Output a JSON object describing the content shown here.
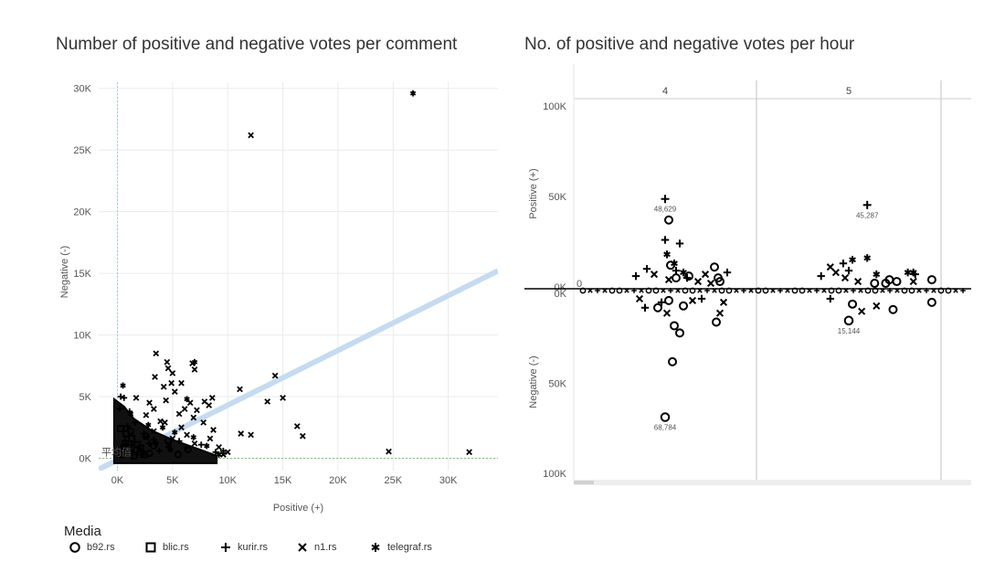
{
  "colors": {
    "grid": "#ebebeb",
    "marker": "#000000",
    "fit_line": "#c6dbef",
    "zero_line_h": "#7bc47b",
    "zero_line_v": "#9ecae1",
    "facet_border": "#cccccc"
  },
  "legend": {
    "title": "Media",
    "items": [
      {
        "label": "b92.rs",
        "shape": "circle"
      },
      {
        "label": "blic.rs",
        "shape": "square"
      },
      {
        "label": "kurir.rs",
        "shape": "plus"
      },
      {
        "label": "n1.rs",
        "shape": "cross"
      },
      {
        "label": "telegraf.rs",
        "shape": "asterisk"
      }
    ]
  },
  "chart_data": [
    {
      "type": "scatter",
      "title": "Number of positive and negative votes per comment",
      "xlabel": "Positive (+)",
      "ylabel": "Negative (-)",
      "xlim": [
        -1700,
        34500
      ],
      "ylim": [
        -1000,
        30500
      ],
      "x_ticks": [
        0,
        5000,
        10000,
        15000,
        20000,
        25000,
        30000
      ],
      "x_tick_labels": [
        "0K",
        "5K",
        "10K",
        "15K",
        "20K",
        "25K",
        "30K"
      ],
      "y_ticks": [
        0,
        5000,
        10000,
        15000,
        20000,
        25000,
        30000
      ],
      "y_tick_labels": [
        "0K",
        "5K",
        "10K",
        "15K",
        "20K",
        "25K",
        "30K"
      ],
      "grid": true,
      "legend_position": "bottom",
      "watermark_text": "平均值",
      "fit_line": {
        "x0": -1700,
        "y0": -900,
        "x1": 34500,
        "y1": 15200
      },
      "series": [
        {
          "name": "n1.rs",
          "marker": "cross",
          "points": [
            [
              12100,
              26200
            ],
            [
              5800,
              6100
            ],
            [
              14300,
              6700
            ],
            [
              15000,
              4900
            ],
            [
              13600,
              4600
            ],
            [
              11100,
              5600
            ],
            [
              11200,
              2000
            ],
            [
              12100,
              1900
            ],
            [
              16300,
              2600
            ],
            [
              16800,
              1800
            ],
            [
              24600,
              550
            ],
            [
              31900,
              500
            ],
            [
              7000,
              7200
            ],
            [
              6800,
              7700
            ],
            [
              4500,
              7800
            ],
            [
              3500,
              8500
            ],
            [
              4600,
              7300
            ],
            [
              5000,
              6900
            ],
            [
              3400,
              6600
            ],
            [
              4200,
              5800
            ],
            [
              5200,
              5400
            ],
            [
              4900,
              6100
            ],
            [
              8600,
              4900
            ],
            [
              7900,
              4600
            ],
            [
              8300,
              4300
            ],
            [
              7200,
              3900
            ],
            [
              6100,
              4000
            ],
            [
              5600,
              3600
            ],
            [
              7800,
              2900
            ],
            [
              8700,
              2300
            ],
            [
              8400,
              1600
            ],
            [
              9200,
              900
            ],
            [
              10000,
              500
            ],
            [
              9600,
              300
            ],
            [
              4400,
              4700
            ],
            [
              6600,
              4500
            ],
            [
              6900,
              3300
            ],
            [
              3900,
              3000
            ],
            [
              1700,
              4900
            ],
            [
              2900,
              4500
            ],
            [
              3300,
              4000
            ],
            [
              2600,
              3500
            ],
            [
              5800,
              2500
            ],
            [
              4300,
              2900
            ],
            [
              6300,
              1900
            ],
            [
              7000,
              1200
            ],
            [
              5000,
              1600
            ],
            [
              3300,
              2200
            ],
            [
              2600,
              1700
            ],
            [
              4700,
              1100
            ]
          ]
        },
        {
          "name": "kurir.rs",
          "marker": "plus",
          "points": [
            [
              300,
              5000
            ],
            [
              600,
              4900
            ],
            [
              200,
              4000
            ],
            [
              1100,
              3800
            ],
            [
              900,
              2600
            ],
            [
              1600,
              2900
            ],
            [
              2400,
              2000
            ],
            [
              3300,
              1500
            ],
            [
              4600,
              900
            ],
            [
              5600,
              1400
            ],
            [
              8900,
              500
            ],
            [
              9600,
              600
            ],
            [
              700,
              1400
            ],
            [
              1300,
              1100
            ],
            [
              2100,
              700
            ],
            [
              2900,
              1200
            ],
            [
              3800,
              600
            ],
            [
              6300,
              900
            ],
            [
              7600,
              1100
            ],
            [
              1800,
              300
            ]
          ]
        },
        {
          "name": "telegraf.rs",
          "marker": "asterisk",
          "points": [
            [
              26800,
              29600
            ],
            [
              7000,
              7800
            ],
            [
              6300,
              4800
            ],
            [
              500,
              5900
            ],
            [
              1200,
              3600
            ],
            [
              2800,
              2700
            ],
            [
              4100,
              2500
            ],
            [
              5200,
              2100
            ],
            [
              6900,
              1700
            ],
            [
              3500,
              1200
            ],
            [
              4800,
              700
            ],
            [
              8100,
              1000
            ],
            [
              9200,
              300
            ],
            [
              2300,
              400
            ]
          ]
        },
        {
          "name": "b92.rs",
          "marker": "circle",
          "points": [
            [
              1200,
              2200
            ],
            [
              2600,
              1800
            ],
            [
              3300,
              1000
            ],
            [
              4600,
              1400
            ],
            [
              6400,
              700
            ],
            [
              1700,
              700
            ],
            [
              2900,
              400
            ],
            [
              5500,
              300
            ]
          ]
        },
        {
          "name": "blic.rs",
          "marker": "square",
          "points": [
            [
              400,
              300
            ],
            [
              900,
              600
            ],
            [
              1500,
              200
            ],
            [
              2100,
              800
            ],
            [
              700,
              1200
            ],
            [
              1300,
              1600
            ],
            [
              300,
              2400
            ],
            [
              800,
              2000
            ],
            [
              1800,
              1100
            ],
            [
              2400,
              300
            ],
            [
              600,
              900
            ],
            [
              1100,
              400
            ]
          ]
        }
      ]
    },
    {
      "type": "scatter",
      "title": "No. of positive and negative votes per hour",
      "xlabel": "",
      "ylabel_top": "Positive (+)",
      "ylabel_bottom": "Negative (-)",
      "y_ticks_top": [
        100000,
        50000,
        0
      ],
      "y_tick_labels_top": [
        "100K",
        "50K",
        "0K"
      ],
      "y_ticks_bottom": [
        0,
        50000,
        100000
      ],
      "y_tick_labels_bottom": [
        "0K",
        "50K",
        "100K"
      ],
      "ylim": [
        -100000,
        100000
      ],
      "x_axis_label": "0",
      "facets": [
        "4",
        "5"
      ],
      "annotations": [
        {
          "facet": "4",
          "x": 0.5,
          "y": 48629,
          "text": "48,629",
          "marker": "plus"
        },
        {
          "facet": "4",
          "x": 0.5,
          "y": -68784,
          "text": "68,784",
          "marker": "circle"
        },
        {
          "facet": "5",
          "x": 0.6,
          "y": 45287,
          "text": "45,287",
          "marker": "plus"
        },
        {
          "facet": "5",
          "x": 0.5,
          "y": -15144,
          "text": "15,144",
          "marker": "circle"
        }
      ],
      "series": [
        {
          "name": "b92.rs",
          "marker": "circle",
          "points": [
            [
              "4",
              0.52,
              37000
            ],
            [
              "4",
              0.53,
              12000
            ],
            [
              "4",
              0.56,
              5000
            ],
            [
              "4",
              0.63,
              6000
            ],
            [
              "4",
              0.77,
              11000
            ],
            [
              "4",
              0.79,
              5000
            ],
            [
              "4",
              0.8,
              3000
            ],
            [
              "4",
              0.52,
              -4000
            ],
            [
              "4",
              0.46,
              -8000
            ],
            [
              "4",
              0.55,
              -18000
            ],
            [
              "4",
              0.58,
              -22000
            ],
            [
              "4",
              0.54,
              -38000
            ],
            [
              "4",
              0.78,
              -16000
            ],
            [
              "4",
              0.6,
              -7000
            ],
            [
              "5",
              0.64,
              2000
            ],
            [
              "5",
              0.7,
              2000
            ],
            [
              "5",
              0.72,
              4000
            ],
            [
              "5",
              0.76,
              3000
            ],
            [
              "5",
              0.95,
              4000
            ],
            [
              "5",
              0.74,
              -9000
            ],
            [
              "5",
              0.95,
              -5000
            ],
            [
              "5",
              0.52,
              -6000
            ]
          ]
        },
        {
          "name": "kurir.rs",
          "marker": "plus",
          "points": [
            [
              "4",
              0.5,
              26000
            ],
            [
              "4",
              0.58,
              24000
            ],
            [
              "4",
              0.4,
              10000
            ],
            [
              "4",
              0.56,
              9000
            ],
            [
              "4",
              0.34,
              6000
            ],
            [
              "4",
              0.62,
              5000
            ],
            [
              "4",
              0.84,
              8000
            ],
            [
              "4",
              0.39,
              -8000
            ],
            [
              "4",
              0.48,
              -5000
            ],
            [
              "4",
              0.7,
              -3000
            ],
            [
              "5",
              0.35,
              6000
            ],
            [
              "5",
              0.47,
              13000
            ],
            [
              "5",
              0.5,
              9000
            ],
            [
              "5",
              0.86,
              7000
            ],
            [
              "5",
              0.4,
              -3000
            ]
          ]
        },
        {
          "name": "n1.rs",
          "marker": "cross",
          "points": [
            [
              "4",
              0.44,
              7000
            ],
            [
              "4",
              0.52,
              4000
            ],
            [
              "4",
              0.68,
              3000
            ],
            [
              "4",
              0.72,
              7000
            ],
            [
              "4",
              0.75,
              2000
            ],
            [
              "4",
              0.51,
              -11000
            ],
            [
              "4",
              0.65,
              -4000
            ],
            [
              "4",
              0.8,
              -11000
            ],
            [
              "4",
              0.82,
              -5000
            ],
            [
              "4",
              0.36,
              -3000
            ],
            [
              "5",
              0.4,
              11000
            ],
            [
              "5",
              0.43,
              8000
            ],
            [
              "5",
              0.48,
              5000
            ],
            [
              "5",
              0.55,
              3000
            ],
            [
              "5",
              0.57,
              -10000
            ],
            [
              "5",
              0.65,
              -7000
            ],
            [
              "5",
              0.85,
              3000
            ]
          ]
        },
        {
          "name": "telegraf.rs",
          "marker": "asterisk",
          "points": [
            [
              "4",
              0.51,
              18000
            ],
            [
              "4",
              0.55,
              13000
            ],
            [
              "4",
              0.6,
              8000
            ],
            [
              "5",
              0.52,
              15000
            ],
            [
              "5",
              0.6,
              16000
            ],
            [
              "5",
              0.65,
              7000
            ],
            [
              "5",
              0.82,
              8000
            ],
            [
              "5",
              0.85,
              8000
            ]
          ]
        }
      ]
    }
  ]
}
